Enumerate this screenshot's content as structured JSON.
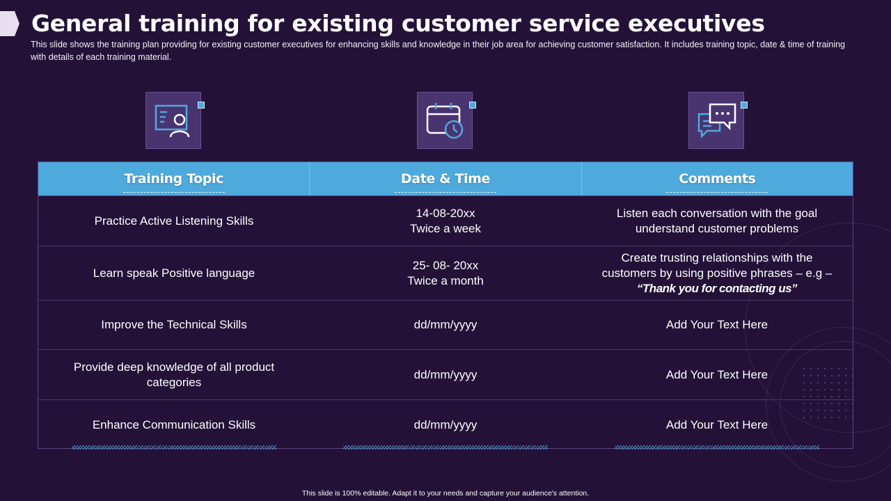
{
  "title": "General training for existing customer service executives",
  "subtitle": "This slide shows the training plan providing for existing customer executives for enhancing skills and knowledge in their job area for achieving customer satisfaction. It includes training topic, date & time of training with details of each training material.",
  "icons": [
    "presenter-icon",
    "calendar-clock-icon",
    "chat-bubbles-icon"
  ],
  "table": {
    "headers": [
      "Training Topic",
      "Date & Time",
      "Comments"
    ],
    "rows": [
      {
        "topic": "Practice Active Listening Skills",
        "date_line1": "14-08-20xx",
        "date_line2": "Twice a week",
        "comment_line1": "Listen each conversation with the goal",
        "comment_line2": "understand customer problems",
        "comment_line3": ""
      },
      {
        "topic": "Learn speak Positive language",
        "date_line1": "25- 08- 20xx",
        "date_line2": "Twice a month",
        "comment_line1": "Create trusting relationships with the",
        "comment_line2": "customers by using positive phrases – e.g –",
        "comment_line3": "“Thank you for contacting us”"
      },
      {
        "topic": "Improve the Technical Skills",
        "date_line1": "dd/mm/yyyy",
        "date_line2": "",
        "comment_line1": "Add Your Text Here",
        "comment_line2": "",
        "comment_line3": ""
      },
      {
        "topic_line1": "Provide deep knowledge of all product",
        "topic_line2": "categories",
        "date_line1": "dd/mm/yyyy",
        "date_line2": "",
        "comment_line1": "Add Your Text Here",
        "comment_line2": "",
        "comment_line3": ""
      },
      {
        "topic": "Enhance Communication Skills",
        "date_line1": "dd/mm/yyyy",
        "date_line2": "",
        "comment_line1": "Add Your Text Here",
        "comment_line2": "",
        "comment_line3": ""
      }
    ]
  },
  "footer": "This slide is 100% editable. Adapt it to your needs and capture your audience's attention.",
  "colors": {
    "background": "#231137",
    "accent": "#4ea9dd",
    "icon_box": "#4a3470"
  }
}
